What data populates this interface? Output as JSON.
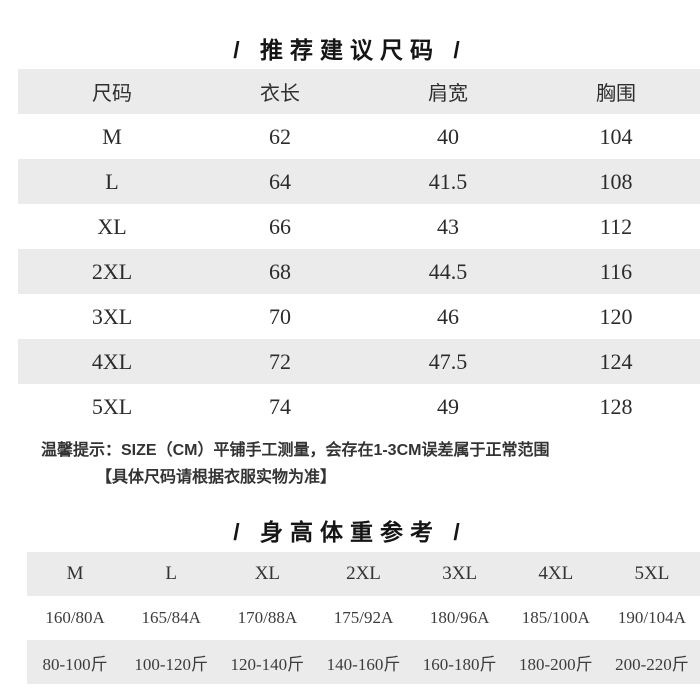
{
  "colors": {
    "row_stripe": "#ebebeb",
    "title_text": "#151515",
    "table_text": "#2b2b2b"
  },
  "section1": {
    "title": "/ 推荐建议尺码 /",
    "columns": [
      "尺码",
      "衣长",
      "肩宽",
      "胸围"
    ],
    "rows": [
      {
        "size": "M",
        "length": "62",
        "shoulder": "40",
        "chest": "104"
      },
      {
        "size": "L",
        "length": "64",
        "shoulder": "41.5",
        "chest": "108"
      },
      {
        "size": "XL",
        "length": "66",
        "shoulder": "43",
        "chest": "112"
      },
      {
        "size": "2XL",
        "length": "68",
        "shoulder": "44.5",
        "chest": "116"
      },
      {
        "size": "3XL",
        "length": "70",
        "shoulder": "46",
        "chest": "120"
      },
      {
        "size": "4XL",
        "length": "72",
        "shoulder": "47.5",
        "chest": "124"
      },
      {
        "size": "5XL",
        "length": "74",
        "shoulder": "49",
        "chest": "128"
      }
    ],
    "note_line1": "温馨提示：SIZE（CM）平铺手工测量，会存在1-3CM误差属于正常范围",
    "note_line2": "【具体尺码请根据衣服实物为准】"
  },
  "section2": {
    "title": "/ 身高体重参考 /",
    "sizes": [
      "M",
      "L",
      "XL",
      "2XL",
      "3XL",
      "4XL",
      "5XL"
    ],
    "heights": [
      "160/80A",
      "165/84A",
      "170/88A",
      "175/92A",
      "180/96A",
      "185/100A",
      "190/104A"
    ],
    "weights": [
      "80-100斤",
      "100-120斤",
      "120-140斤",
      "140-160斤",
      "160-180斤",
      "180-200斤",
      "200-220斤"
    ]
  }
}
